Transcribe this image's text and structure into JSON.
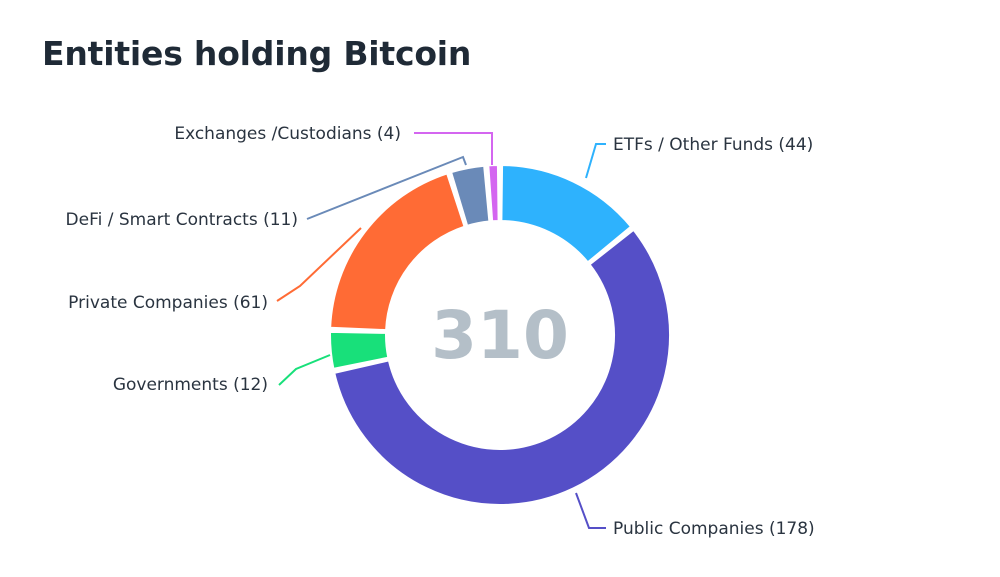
{
  "title": "Entities holding Bitcoin",
  "chart_data": {
    "type": "pie",
    "total_label": "310",
    "slices": [
      {
        "label": "ETFs / Other Funds",
        "value": 44,
        "display": "ETFs / Other Funds (44)",
        "color": "#2eb2fd"
      },
      {
        "label": "Public Companies",
        "value": 178,
        "display": "Public Companies (178)",
        "color": "#554fc7"
      },
      {
        "label": "Governments",
        "value": 12,
        "display": "Governments (12)",
        "color": "#18e07a"
      },
      {
        "label": "Private Companies",
        "value": 61,
        "display": "Private Companies (61)",
        "color": "#ff6b35"
      },
      {
        "label": "DeFi / Smart Contracts",
        "value": 11,
        "display": "DeFi / Smart Contracts (11)",
        "color": "#6a8ab8"
      },
      {
        "label": "Exchanges /Custodians",
        "value": 4,
        "display": "Exchanges /Custodians (4)",
        "color": "#d466f0"
      }
    ]
  }
}
